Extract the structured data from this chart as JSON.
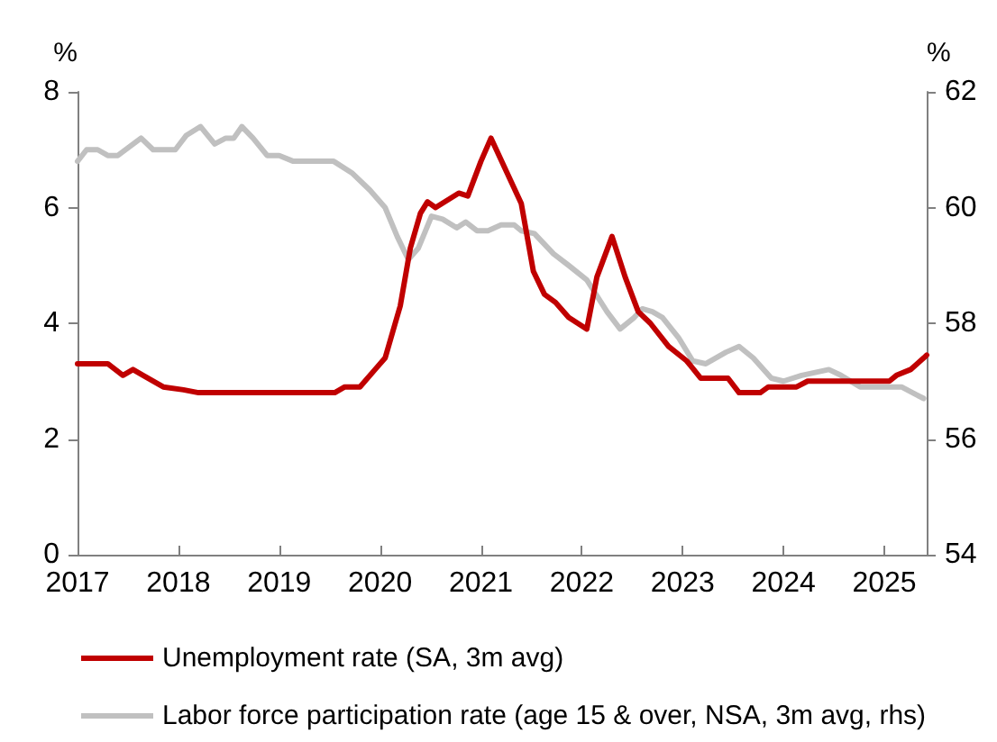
{
  "chart_data": {
    "type": "line",
    "ylabel": "%",
    "y2label": "%",
    "xlim": [
      2017,
      2025.42
    ],
    "xticks": [
      2017,
      2018,
      2019,
      2020,
      2021,
      2022,
      2023,
      2024,
      2025
    ],
    "ylim": [
      0,
      8
    ],
    "yticks": [
      0,
      2,
      4,
      6,
      8
    ],
    "y2lim": [
      54,
      62
    ],
    "y2ticks": [
      54,
      56,
      58,
      60,
      62
    ],
    "grid": false,
    "legend": "bottom",
    "marker": "none",
    "line_style": "solid",
    "series": [
      {
        "name": "Unemployment rate (SA, 3m avg)",
        "color": "#c00000",
        "x": [
          2017,
          2017.3,
          2017.45,
          2017.55,
          2017.65,
          2017.85,
          2018.05,
          2018.2,
          2019.55,
          2019.65,
          2019.8,
          2019.95,
          2020.05,
          2020.15,
          2020.2,
          2020.3,
          2020.4,
          2020.47,
          2020.55,
          2020.78,
          2020.87,
          2021,
          2021.1,
          2021.4,
          2021.52,
          2021.63,
          2021.74,
          2021.87,
          2022.05,
          2022.15,
          2022.3,
          2022.43,
          2022.56,
          2022.68,
          2022.86,
          2023.04,
          2023.18,
          2023.45,
          2023.56,
          2023.77,
          2023.85,
          2024.13,
          2024.24,
          2025.05,
          2025.12,
          2025.26,
          2025.39,
          2025.42
        ],
        "values": [
          3.3,
          3.3,
          3.1,
          3.2,
          3.1,
          2.9,
          2.85,
          2.8,
          2.8,
          2.9,
          2.9,
          3.2,
          3.4,
          4.0,
          4.3,
          5.3,
          5.9,
          6.1,
          6.0,
          6.25,
          6.2,
          6.8,
          7.2,
          6.07,
          4.9,
          4.5,
          4.36,
          4.1,
          3.9,
          4.8,
          5.5,
          4.8,
          4.2,
          4.0,
          3.6,
          3.35,
          3.05,
          3.05,
          2.8,
          2.8,
          2.9,
          2.9,
          3.0,
          3.0,
          3.1,
          3.2,
          3.4,
          3.45
        ]
      },
      {
        "name": "Labor force participation rate (age 15 & over, NSA, 3m avg, rhs)",
        "color": "#c0c0c0",
        "axis": "y2",
        "x": [
          2017,
          2017.09,
          2017.2,
          2017.3,
          2017.4,
          2017.63,
          2017.75,
          2017.97,
          2018.08,
          2018.22,
          2018.36,
          2018.47,
          2018.55,
          2018.63,
          2018.74,
          2018.88,
          2019,
          2019.14,
          2019.54,
          2019.72,
          2019.9,
          2020.05,
          2020.17,
          2020.28,
          2020.38,
          2020.51,
          2020.62,
          2020.76,
          2020.85,
          2020.96,
          2021.07,
          2021.2,
          2021.33,
          2021.4,
          2021.53,
          2021.72,
          2021.87,
          2022.05,
          2022.25,
          2022.38,
          2022.52,
          2022.6,
          2022.7,
          2022.8,
          2022.96,
          2023.1,
          2023.23,
          2023.43,
          2023.56,
          2023.7,
          2023.88,
          2024,
          2024.18,
          2024.45,
          2024.57,
          2024.76,
          2025.17,
          2025.39
        ],
        "values": [
          60.8,
          61.0,
          61.0,
          60.9,
          60.9,
          61.2,
          61.0,
          61.0,
          61.25,
          61.4,
          61.1,
          61.2,
          61.2,
          61.4,
          61.2,
          60.9,
          60.9,
          60.8,
          60.8,
          60.6,
          60.3,
          60.0,
          59.5,
          59.1,
          59.3,
          59.85,
          59.8,
          59.65,
          59.75,
          59.6,
          59.6,
          59.7,
          59.7,
          59.6,
          59.55,
          59.2,
          59.0,
          58.75,
          58.2,
          57.9,
          58.1,
          58.25,
          58.2,
          58.1,
          57.75,
          57.35,
          57.3,
          57.5,
          57.6,
          57.4,
          57.05,
          57.0,
          57.1,
          57.2,
          57.1,
          56.9,
          56.9,
          56.7
        ]
      }
    ]
  }
}
